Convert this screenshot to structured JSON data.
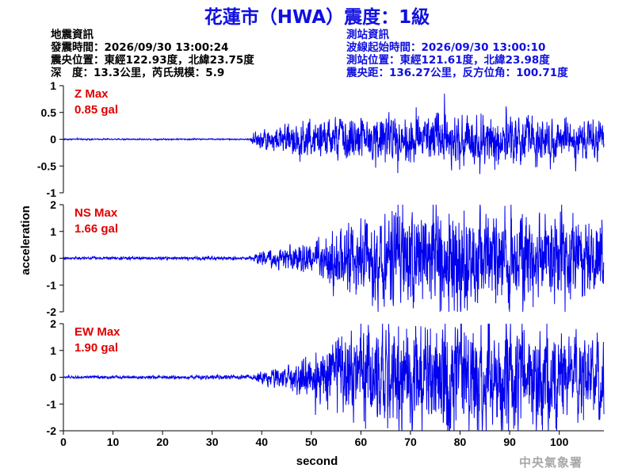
{
  "title": "花蓮市（HWA）震度：1級",
  "earthquake_info": {
    "heading": "地震資訊",
    "time": "發震時間：2026/09/30 13:00:24",
    "location": "震央位置：東經122.93度，北緯23.75度",
    "depth": "深　度：13.3公里，芮氏規模：5.9"
  },
  "station_info": {
    "heading": "測站資訊",
    "onset": "波線起始時間：2026/09/30 13:00:10",
    "location": "測站位置：東經121.61度，北緯23.98度",
    "distance": "震央距：136.27公里，反方位角：100.71度"
  },
  "agency": "中央氣象署",
  "chart_data": {
    "type": "line",
    "xlabel": "second",
    "ylabel": "acceleration",
    "xlim": [
      0,
      109
    ],
    "x_ticks": [
      0,
      10,
      20,
      30,
      40,
      50,
      60,
      70,
      80,
      90,
      100
    ],
    "series_color": "#0000ee",
    "panels": [
      {
        "name": "Z",
        "max_label": "Z Max",
        "max_value": "0.85 gal",
        "ylim": [
          -1,
          1
        ],
        "y_ticks": [
          1,
          0.5,
          0,
          -0.5,
          -1
        ],
        "y_tick_labels": [
          "1",
          "0.5",
          "0",
          "-0.5",
          "-1"
        ],
        "peak": 0.85,
        "envelope": [
          [
            0,
            0.01
          ],
          [
            37.5,
            0.01
          ],
          [
            38.5,
            0.12
          ],
          [
            42,
            0.2
          ],
          [
            48,
            0.28
          ],
          [
            55,
            0.33
          ],
          [
            65,
            0.38
          ],
          [
            75,
            0.4
          ],
          [
            85,
            0.4
          ],
          [
            95,
            0.36
          ],
          [
            109,
            0.3
          ]
        ]
      },
      {
        "name": "NS",
        "max_label": "NS Max",
        "max_value": "1.66 gal",
        "ylim": [
          -2,
          2
        ],
        "y_ticks": [
          2,
          1,
          0,
          -1,
          -2
        ],
        "y_tick_labels": [
          "2",
          "1",
          "0",
          "-1",
          "-2"
        ],
        "peak": 1.66,
        "envelope": [
          [
            0,
            0.02
          ],
          [
            38,
            0.03
          ],
          [
            40,
            0.12
          ],
          [
            45,
            0.18
          ],
          [
            50,
            0.22
          ],
          [
            55,
            0.45
          ],
          [
            62,
            0.65
          ],
          [
            70,
            0.75
          ],
          [
            80,
            0.78
          ],
          [
            90,
            0.72
          ],
          [
            100,
            0.7
          ],
          [
            109,
            0.6
          ]
        ]
      },
      {
        "name": "EW",
        "max_label": "EW Max",
        "max_value": "1.90 gal",
        "ylim": [
          -2,
          2
        ],
        "y_ticks": [
          2,
          1,
          0,
          -1,
          -2
        ],
        "y_tick_labels": [
          "2",
          "1",
          "0",
          "-1",
          "-2"
        ],
        "peak": 1.9,
        "envelope": [
          [
            0,
            0.02
          ],
          [
            38,
            0.03
          ],
          [
            40,
            0.12
          ],
          [
            45,
            0.2
          ],
          [
            49,
            0.35
          ],
          [
            53,
            0.55
          ],
          [
            60,
            0.75
          ],
          [
            70,
            0.9
          ],
          [
            80,
            0.95
          ],
          [
            90,
            0.9
          ],
          [
            100,
            0.75
          ],
          [
            109,
            0.65
          ]
        ]
      }
    ]
  }
}
